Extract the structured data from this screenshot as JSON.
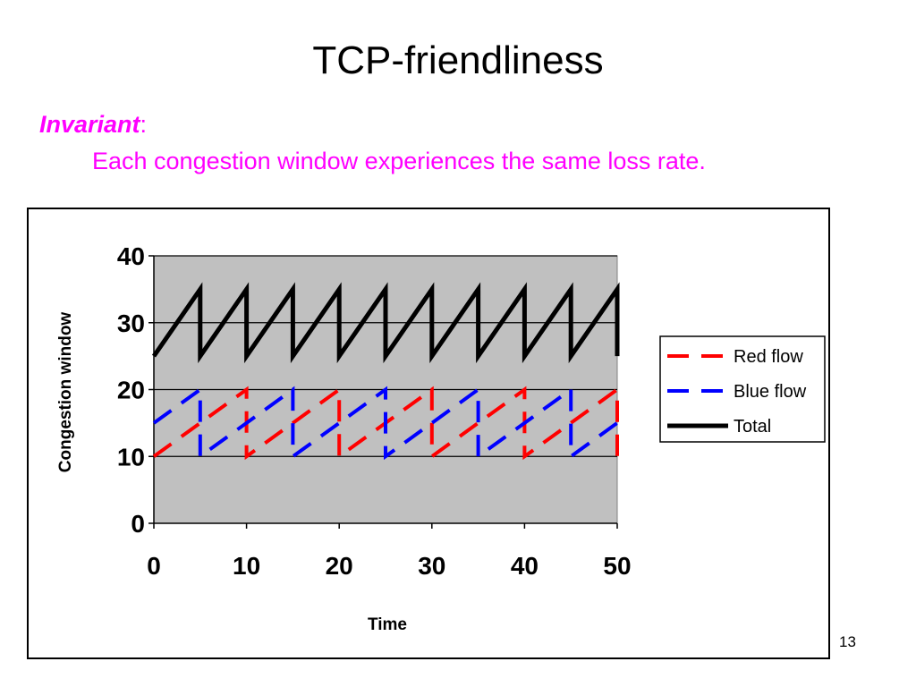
{
  "slide": {
    "title": "TCP-friendliness",
    "invariant_label": "Invariant",
    "invariant_colon": ":",
    "invariant_text": "Each congestion window experiences the same loss rate.",
    "page_number": "13",
    "accent_color": "#ff00ff"
  },
  "chart_data": {
    "type": "line",
    "title": "",
    "xlabel": "Time",
    "ylabel": "Congestion window",
    "xlim": [
      0,
      50
    ],
    "ylim": [
      0,
      40
    ],
    "xticks": [
      0,
      10,
      20,
      30,
      40,
      50
    ],
    "yticks": [
      0,
      10,
      20,
      30,
      40
    ],
    "grid": true,
    "plot_background": "#c0c0c0",
    "legend_position": "right",
    "series": [
      {
        "name": "Red flow",
        "color": "#ff0000",
        "dash": "dashed",
        "x": [
          0,
          10,
          10,
          20,
          20,
          30,
          30,
          40,
          40,
          50,
          50
        ],
        "y": [
          10,
          20,
          10,
          20,
          10,
          20,
          10,
          20,
          10,
          20,
          10
        ]
      },
      {
        "name": "Blue flow",
        "color": "#0000ff",
        "dash": "dashed",
        "x": [
          0,
          5,
          5,
          15,
          15,
          25,
          25,
          35,
          35,
          45,
          45,
          50
        ],
        "y": [
          15,
          20,
          10,
          20,
          10,
          20,
          10,
          20,
          10,
          20,
          10,
          15
        ]
      },
      {
        "name": "Total",
        "color": "#000000",
        "dash": "solid",
        "x": [
          0,
          5,
          5,
          10,
          10,
          15,
          15,
          20,
          20,
          25,
          25,
          30,
          30,
          35,
          35,
          40,
          40,
          45,
          45,
          50,
          50
        ],
        "y": [
          25,
          35,
          25,
          35,
          25,
          35,
          25,
          35,
          25,
          35,
          25,
          35,
          25,
          35,
          25,
          35,
          25,
          35,
          25,
          35,
          25
        ]
      }
    ]
  }
}
